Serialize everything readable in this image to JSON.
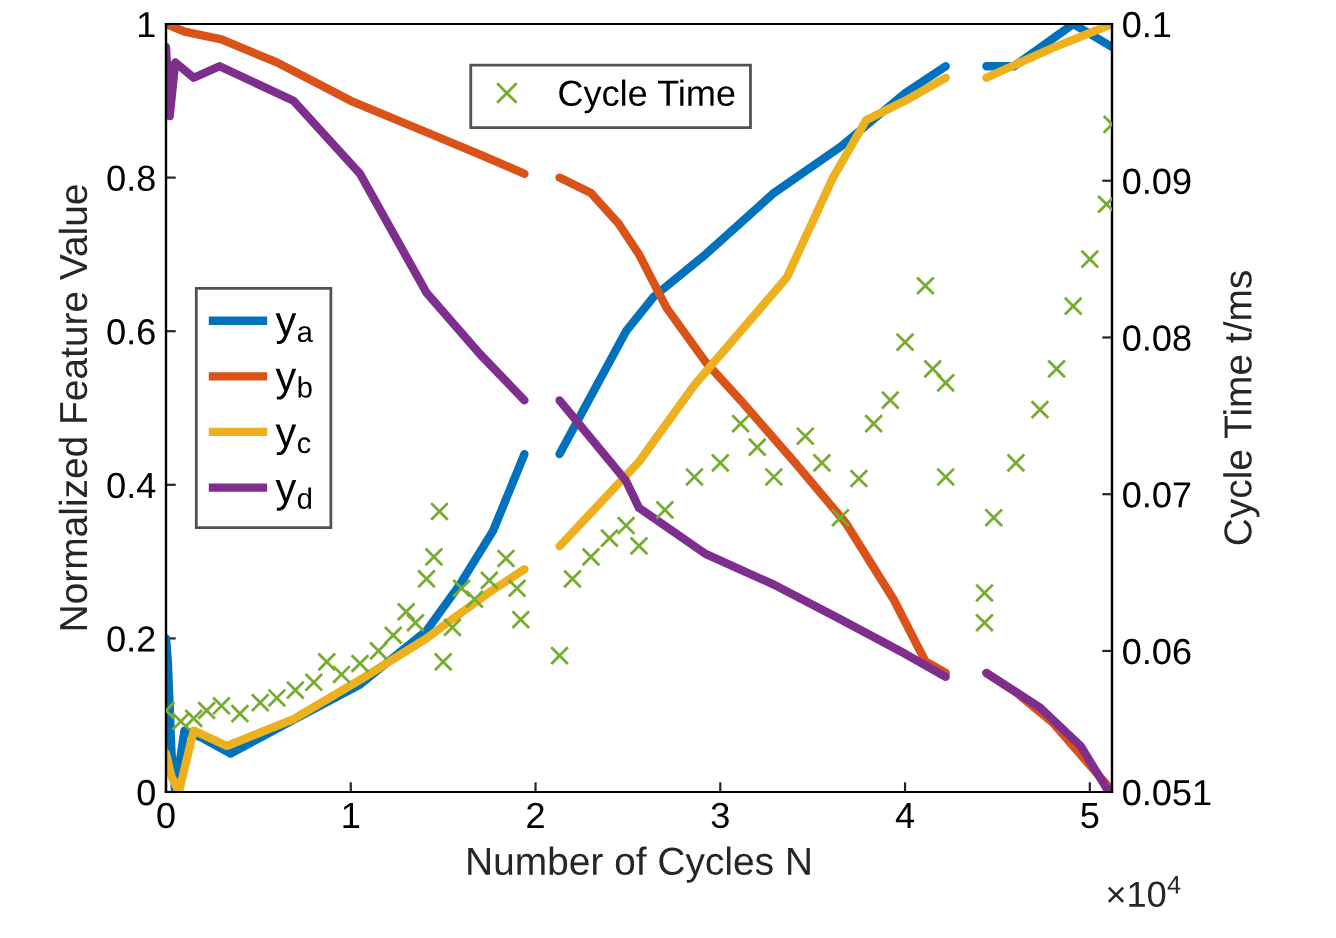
{
  "chart_data": {
    "type": "line",
    "xlabel": "Number of Cycles N",
    "ylabel": "Normalized Feature Value",
    "y2label": "Cycle Time t/ms",
    "xlim": [
      0,
      5.12
    ],
    "xticks": [
      0,
      1,
      2,
      3,
      4,
      5
    ],
    "ylim": [
      0,
      1
    ],
    "yticks": [
      0,
      0.2,
      0.4,
      0.6,
      0.8,
      1
    ],
    "y2lim": [
      0.051,
      0.1
    ],
    "y2ticks": [
      0.051,
      0.06,
      0.07,
      0.08,
      0.09,
      0.1
    ],
    "legend": "left",
    "marker": "none",
    "line_style": "solid",
    "grid": false,
    "annotations": [
      "×10$^{4}$"
    ],
    "series": [
      {
        "name": "y$_{a}$",
        "color": "#0072bd",
        "x": [
          0,
          0.01,
          0.03,
          0.05,
          0.1,
          0.2,
          0.35,
          0.69,
          1.05,
          1.41,
          1.59,
          1.77,
          1.94,
          2.03,
          2.13,
          2.49,
          2.64,
          2.92,
          3.29,
          3.65,
          4.0,
          4.22,
          4.33,
          4.44,
          4.59,
          4.91,
          5.12
        ],
        "values": [
          0.2,
          0.17,
          0.05,
          0.0,
          0.08,
          0.07,
          0.05,
          0.094,
          0.14,
          0.21,
          0.27,
          0.34,
          0.44,
          null,
          0.44,
          0.6,
          0.645,
          0.7,
          0.78,
          0.84,
          0.91,
          0.945,
          null,
          0.945,
          0.945,
          1.0,
          0.97
        ]
      },
      {
        "name": "y$_{b}$",
        "color": "#d95319",
        "x": [
          0,
          0.1,
          0.3,
          0.6,
          1.0,
          1.4,
          1.7,
          1.94,
          2.03,
          2.13,
          2.3,
          2.45,
          2.56,
          2.71,
          2.92,
          3.11,
          3.4,
          3.68,
          3.94,
          4.11,
          4.22,
          4.33,
          4.44,
          4.6,
          4.8,
          5.09,
          5.12
        ],
        "values": [
          1.0,
          0.99,
          0.98,
          0.95,
          0.9,
          0.86,
          0.83,
          0.805,
          null,
          0.8,
          0.78,
          0.74,
          0.7,
          0.63,
          0.56,
          0.51,
          0.43,
          0.35,
          0.25,
          0.17,
          0.155,
          null,
          0.155,
          0.13,
          0.09,
          0.01,
          0.0
        ]
      },
      {
        "name": "y$_{c}$",
        "color": "#edb120",
        "x": [
          0,
          0.03,
          0.07,
          0.15,
          0.33,
          0.69,
          1.05,
          1.41,
          1.55,
          1.75,
          1.94,
          2.03,
          2.13,
          2.56,
          2.86,
          3.11,
          3.36,
          3.61,
          3.79,
          4.0,
          4.22,
          4.33,
          4.44,
          4.81,
          5.12
        ],
        "values": [
          0.05,
          0.02,
          0.0,
          0.08,
          0.06,
          0.095,
          0.146,
          0.2,
          0.225,
          0.26,
          0.29,
          null,
          0.32,
          0.43,
          0.53,
          0.6,
          0.67,
          0.8,
          0.875,
          0.9,
          0.93,
          null,
          0.93,
          0.97,
          1.0
        ]
      },
      {
        "name": "y$_{d}$",
        "color": "#7e2f8e",
        "x": [
          0,
          0.02,
          0.05,
          0.15,
          0.29,
          0.69,
          1.05,
          1.41,
          1.7,
          1.94,
          2.03,
          2.13,
          2.49,
          2.56,
          2.92,
          3.29,
          3.65,
          4.0,
          4.22,
          4.33,
          4.44,
          4.73,
          4.95,
          5.09,
          5.12
        ],
        "values": [
          0.97,
          0.88,
          0.95,
          0.93,
          0.945,
          0.9,
          0.805,
          0.65,
          0.57,
          0.51,
          null,
          0.51,
          0.405,
          0.37,
          0.31,
          0.27,
          0.225,
          0.18,
          0.15,
          null,
          0.155,
          0.11,
          0.06,
          0.005,
          0.0
        ]
      },
      {
        "name": "Cycle Time",
        "color": "#77ac30",
        "type": "scatter",
        "axis": "y2",
        "marker": "cross",
        "x": [
          0,
          0.08,
          0.15,
          0.22,
          0.3,
          0.4,
          0.51,
          0.6,
          0.7,
          0.8,
          0.87,
          0.95,
          1.05,
          1.15,
          1.23,
          1.3,
          1.35,
          1.41,
          1.45,
          1.48,
          1.5,
          1.55,
          1.6,
          1.67,
          1.75,
          1.84,
          1.9,
          1.92,
          2.13,
          2.2,
          2.3,
          2.4,
          2.49,
          2.56,
          2.7,
          2.86,
          3.0,
          3.11,
          3.2,
          3.29,
          3.46,
          3.55,
          3.65,
          3.75,
          3.83,
          3.92,
          4.0,
          4.11,
          4.15,
          4.22,
          4.22,
          4.43,
          4.43,
          4.48,
          4.6,
          4.73,
          4.82,
          4.91,
          5.0,
          5.09,
          5.12
        ],
        "values": [
          0.0562,
          0.0555,
          0.0557,
          0.0562,
          0.0565,
          0.056,
          0.0567,
          0.057,
          0.0575,
          0.058,
          0.0593,
          0.0585,
          0.0592,
          0.06,
          0.061,
          0.0625,
          0.0618,
          0.0646,
          0.066,
          0.0689,
          0.0593,
          0.0615,
          0.064,
          0.0633,
          0.0645,
          0.0659,
          0.064,
          0.062,
          0.0597,
          0.0646,
          0.066,
          0.0672,
          0.068,
          0.0667,
          0.069,
          0.0711,
          0.072,
          0.0745,
          0.073,
          0.0711,
          0.0737,
          0.072,
          0.0685,
          0.071,
          0.0745,
          0.076,
          0.0797,
          0.0833,
          0.078,
          0.0771,
          0.0711,
          0.0637,
          0.0618,
          0.0685,
          0.072,
          0.0754,
          0.078,
          0.082,
          0.085,
          0.0885,
          0.0936
        ]
      }
    ]
  }
}
